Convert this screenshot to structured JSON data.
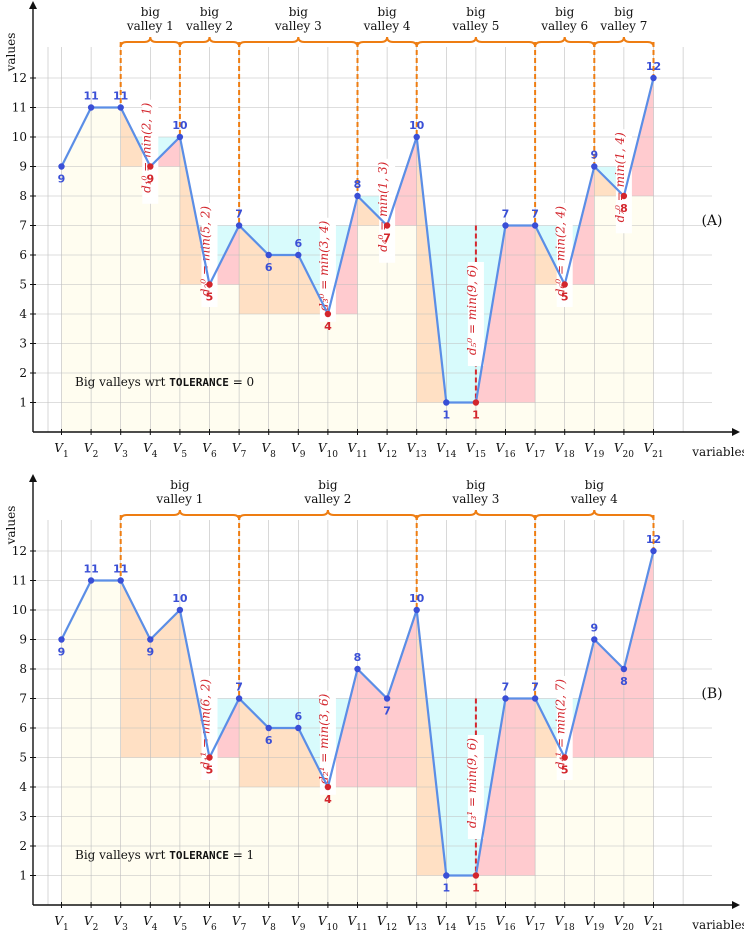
{
  "axis": {
    "x_label": "variables",
    "y_label": "values"
  },
  "panels": [
    {
      "tag": "(A)",
      "caption_prefix": "Big valleys wrt",
      "caption_keyword": "TOLERANCE",
      "caption_suffix": "= 0",
      "valleys": [
        {
          "label_line1": "big",
          "label_line2": "valley 1"
        },
        {
          "label_line1": "big",
          "label_line2": "valley 2"
        },
        {
          "label_line1": "big",
          "label_line2": "valley 3"
        },
        {
          "label_line1": "big",
          "label_line2": "valley 4"
        },
        {
          "label_line1": "big",
          "label_line2": "valley 5"
        },
        {
          "label_line1": "big",
          "label_line2": "valley 6"
        },
        {
          "label_line1": "big",
          "label_line2": "valley 7"
        }
      ],
      "depth_labels": [
        {
          "text": "d₁⁰ = min(2, 1)"
        },
        {
          "text": "d₂⁰ = min(5, 2)"
        },
        {
          "text": "d₃⁰ = min(3, 4)"
        },
        {
          "text": "d₄⁰ = min(1, 3)"
        },
        {
          "text": "d₅⁰ = min(9, 6)"
        },
        {
          "text": "d₆⁰ = min(2, 4)"
        },
        {
          "text": "d₇⁰ = min(1, 4)"
        }
      ]
    },
    {
      "tag": "(B)",
      "caption_prefix": "Big valleys wrt",
      "caption_keyword": "TOLERANCE",
      "caption_suffix": "= 1",
      "valleys": [
        {
          "label_line1": "big",
          "label_line2": "valley 1"
        },
        {
          "label_line1": "big",
          "label_line2": "valley 2"
        },
        {
          "label_line1": "big",
          "label_line2": "valley 3"
        },
        {
          "label_line1": "big",
          "label_line2": "valley 4"
        }
      ],
      "depth_labels": [
        {
          "text": "d₁¹ = min(6, 2)"
        },
        {
          "text": "d₂¹ = min(3, 6)"
        },
        {
          "text": "d₃¹ = min(9, 6)"
        },
        {
          "text": "d₄¹ = min(2, 7)"
        }
      ]
    }
  ],
  "colors": {
    "line": "#5b8ee6",
    "point_blue": "#3a4fd6",
    "point_red": "#d3262d",
    "brace": "#ee7d12",
    "bg": "#fffdf0",
    "cyan": "#d8fbfc",
    "orange": "#ffe0c4",
    "pink": "#ffcbcf"
  },
  "chart_data": [
    {
      "type": "line",
      "title": "",
      "x": [
        "V1",
        "V2",
        "V3",
        "V4",
        "V5",
        "V6",
        "V7",
        "V8",
        "V9",
        "V10",
        "V11",
        "V12",
        "V13",
        "V14",
        "V15",
        "V16",
        "V17",
        "V18",
        "V19",
        "V20",
        "V21"
      ],
      "values": [
        9,
        11,
        11,
        9,
        10,
        5,
        7,
        6,
        6,
        4,
        8,
        7,
        10,
        1,
        1,
        7,
        7,
        5,
        9,
        8,
        12
      ],
      "minima": [
        9,
        5,
        4,
        7,
        1,
        5,
        8
      ],
      "minima_indices": [
        4,
        6,
        10,
        12,
        15,
        18,
        20
      ],
      "valley_ranges": [
        [
          3,
          5
        ],
        [
          5,
          7
        ],
        [
          7,
          11
        ],
        [
          11,
          13
        ],
        [
          13,
          17
        ],
        [
          17,
          19
        ],
        [
          19,
          21
        ]
      ],
      "ylim": [
        0,
        13
      ],
      "yticks": [
        1,
        2,
        3,
        4,
        5,
        6,
        7,
        8,
        9,
        10,
        11,
        12
      ],
      "xlabel": "variables",
      "ylabel": "values"
    },
    {
      "type": "line",
      "title": "",
      "x": [
        "V1",
        "V2",
        "V3",
        "V4",
        "V5",
        "V6",
        "V7",
        "V8",
        "V9",
        "V10",
        "V11",
        "V12",
        "V13",
        "V14",
        "V15",
        "V16",
        "V17",
        "V18",
        "V19",
        "V20",
        "V21"
      ],
      "values": [
        9,
        11,
        11,
        9,
        10,
        5,
        7,
        6,
        6,
        4,
        8,
        7,
        10,
        1,
        1,
        7,
        7,
        5,
        9,
        8,
        12
      ],
      "minima": [
        5,
        4,
        1,
        5
      ],
      "minima_indices": [
        6,
        10,
        15,
        18
      ],
      "valley_ranges": [
        [
          3,
          7
        ],
        [
          7,
          13
        ],
        [
          13,
          17
        ],
        [
          17,
          21
        ]
      ],
      "ylim": [
        0,
        13
      ],
      "yticks": [
        1,
        2,
        3,
        4,
        5,
        6,
        7,
        8,
        9,
        10,
        11,
        12
      ],
      "xlabel": "variables",
      "ylabel": "values"
    }
  ]
}
